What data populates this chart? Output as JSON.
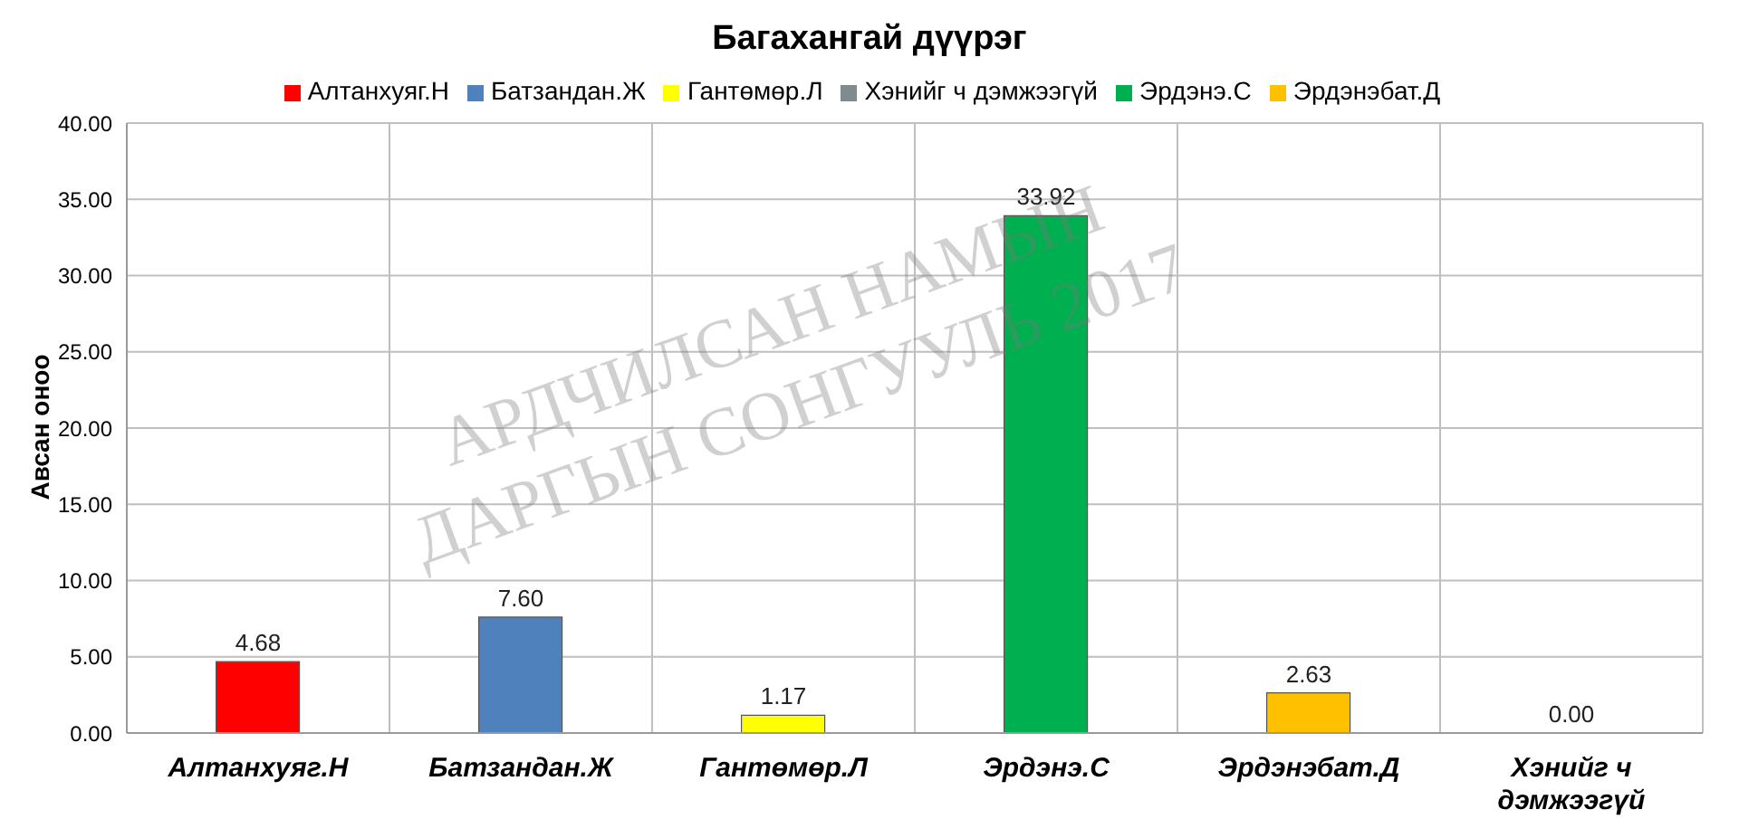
{
  "chart_data": {
    "type": "bar",
    "title": "Багахангай дүүрэг",
    "ylabel": "Авсан оноо",
    "categories": [
      "Алтанхуяг.Н",
      "Батзандан.Ж",
      "Гантөмөр.Л",
      "Эрдэнэ.С",
      "Эрдэнэбат.Д",
      "Хэнийг ч дэмжээгүй"
    ],
    "stacked": true,
    "series": [
      {
        "name": "Алтанхуяг.Н",
        "color": "#ff0000",
        "values": [
          4.68,
          null,
          null,
          null,
          null,
          null
        ],
        "value_labels": [
          "4.68",
          null,
          null,
          null,
          null,
          null
        ]
      },
      {
        "name": "Батзандан.Ж",
        "color": "#4f81bd",
        "values": [
          null,
          7.6,
          null,
          null,
          null,
          null
        ],
        "value_labels": [
          null,
          "7.60",
          null,
          null,
          null,
          null
        ]
      },
      {
        "name": "Гантөмөр.Л",
        "color": "#ffff00",
        "values": [
          null,
          null,
          1.17,
          null,
          null,
          null
        ],
        "value_labels": [
          null,
          null,
          "1.17",
          null,
          null,
          null
        ]
      },
      {
        "name": "Эрдэнэ.С",
        "color": "#00b050",
        "values": [
          null,
          null,
          null,
          33.92,
          null,
          null
        ],
        "value_labels": [
          null,
          null,
          null,
          "33.92",
          null,
          null
        ]
      },
      {
        "name": "Эрдэнэбат.Д",
        "color": "#ffc000",
        "values": [
          null,
          null,
          null,
          null,
          2.63,
          null
        ],
        "value_labels": [
          null,
          null,
          null,
          null,
          "2.63",
          null
        ]
      },
      {
        "name": "Хэнийг ч дэмжээгүй",
        "color": "#7f8c8d",
        "values": [
          null,
          null,
          null,
          null,
          null,
          0
        ],
        "value_labels": [
          null,
          null,
          null,
          null,
          null,
          "0.00"
        ]
      }
    ],
    "ylim": [
      0,
      40
    ],
    "yticks": [
      {
        "value": 0,
        "label": "0.00"
      },
      {
        "value": 5,
        "label": "5.00"
      },
      {
        "value": 10,
        "label": "10.00"
      },
      {
        "value": 15,
        "label": "15.00"
      },
      {
        "value": 20,
        "label": "20.00"
      },
      {
        "value": 25,
        "label": "25.00"
      },
      {
        "value": 30,
        "label": "30.00"
      },
      {
        "value": 35,
        "label": "35.00"
      },
      {
        "value": 40,
        "label": "40.00"
      }
    ],
    "grid": true,
    "legend": "top",
    "annotations": [
      "АРДЧИЛСАН НАМЫН",
      "ДАРГЫН СОНГУУЛЬ 2017"
    ]
  }
}
